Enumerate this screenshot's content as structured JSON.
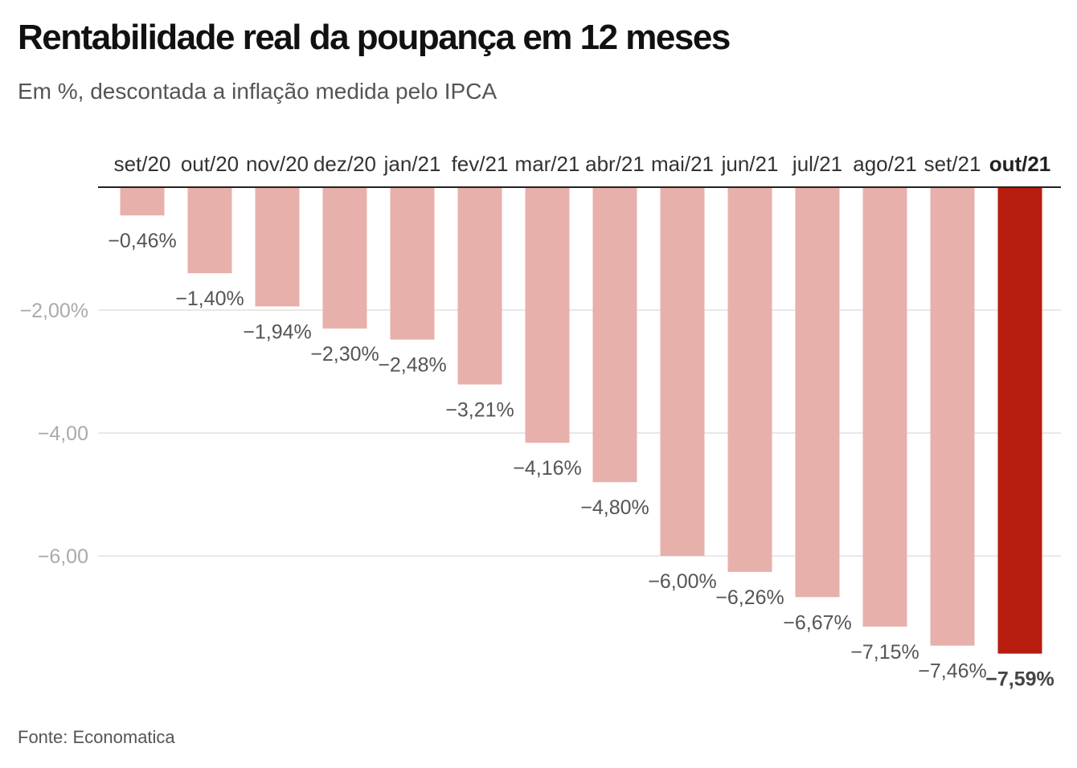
{
  "title": "Rentabilidade real da poupança em 12 meses",
  "subtitle": "Em %, descontada a inflação medida pelo IPCA",
  "source": "Fonte: Economatica",
  "colors": {
    "bar": "#e8b0ab",
    "highlight": "#b81d10",
    "grid": "#e0e0e0",
    "axis": "#222222",
    "value_label": "#555555",
    "tick_label": "#aaaaaa"
  },
  "chart_data": {
    "type": "bar",
    "categories": [
      "set/20",
      "out/20",
      "nov/20",
      "dez/20",
      "jan/21",
      "fev/21",
      "mar/21",
      "abr/21",
      "mai/21",
      "jun/21",
      "jul/21",
      "ago/21",
      "set/21",
      "out/21"
    ],
    "values": [
      -0.46,
      -1.4,
      -1.94,
      -2.3,
      -2.48,
      -3.21,
      -4.16,
      -4.8,
      -6.0,
      -6.26,
      -6.67,
      -7.15,
      -7.46,
      -7.59
    ],
    "value_labels": [
      "−0,46%",
      "−1,40%",
      "−1,94%",
      "−2,30%",
      "−2,48%",
      "−3,21%",
      "−4,16%",
      "−4,80%",
      "−6,00%",
      "−6,26%",
      "−6,67%",
      "−7,15%",
      "−7,46%",
      "−7,59%"
    ],
    "highlight_index": 13,
    "y_ticks": [
      -2,
      -4,
      -6
    ],
    "y_tick_labels": [
      "−2,00%",
      "−4,00",
      "−6,00"
    ],
    "ylim": [
      -7.59,
      0
    ],
    "grid": true
  }
}
